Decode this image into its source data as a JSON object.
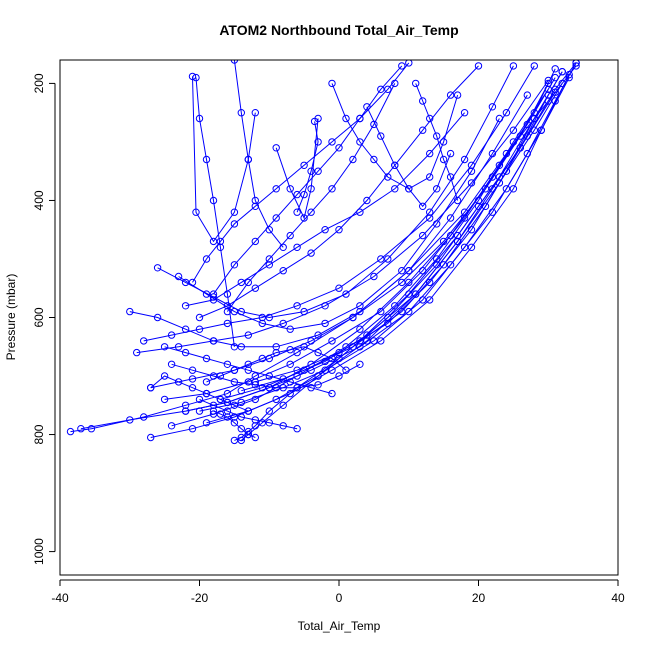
{
  "chart_data": {
    "type": "line",
    "title": "ATOM2 Northbound Total_Air_Temp",
    "xlabel": "Total_Air_Temp",
    "ylabel": "Pressure (mbar)",
    "xlim": [
      -40,
      40
    ],
    "ylim": [
      1040,
      160
    ],
    "y_reversed": true,
    "x_ticks": [
      -40,
      -20,
      0,
      20,
      40
    ],
    "y_ticks": [
      200,
      400,
      600,
      800,
      1000
    ],
    "grid": false,
    "series_color": "#0000ff",
    "series": [
      {
        "x": [
          -38.5,
          -35.5,
          -28,
          -22,
          -16,
          -12,
          -6,
          2,
          10,
          18,
          24,
          30,
          34
        ],
        "y": [
          795,
          790,
          770,
          750,
          730,
          700,
          660,
          600,
          520,
          420,
          320,
          230,
          170
        ]
      },
      {
        "x": [
          -37,
          -30,
          -22,
          -16,
          -10,
          -4,
          3,
          10,
          16,
          22,
          27,
          31
        ],
        "y": [
          790,
          775,
          760,
          745,
          720,
          680,
          620,
          540,
          460,
          360,
          270,
          190
        ]
      },
      {
        "x": [
          -27,
          -21,
          -15,
          -9,
          -3,
          4,
          11,
          17,
          23,
          28,
          32
        ],
        "y": [
          805,
          790,
          770,
          740,
          700,
          640,
          560,
          470,
          370,
          280,
          200
        ]
      },
      {
        "x": [
          -24,
          -18,
          -12,
          -6,
          1,
          8,
          14,
          20,
          25,
          30
        ],
        "y": [
          785,
          765,
          740,
          700,
          650,
          580,
          500,
          400,
          300,
          210
        ]
      },
      {
        "x": [
          -20,
          -14,
          -8,
          -2,
          5,
          12,
          18,
          24,
          29,
          33
        ],
        "y": [
          760,
          745,
          720,
          690,
          640,
          570,
          480,
          380,
          280,
          185
        ]
      },
      {
        "x": [
          -17,
          -11,
          -5,
          2,
          9,
          15,
          21,
          26,
          31
        ],
        "y": [
          740,
          720,
          690,
          650,
          590,
          510,
          410,
          310,
          215
        ]
      },
      {
        "x": [
          -14,
          -8,
          -2,
          4,
          11,
          17,
          22,
          27,
          31,
          34
        ],
        "y": [
          725,
          705,
          675,
          630,
          560,
          470,
          380,
          290,
          210,
          165
        ]
      },
      {
        "x": [
          -12,
          -6,
          0,
          7,
          13,
          19,
          24,
          28,
          32
        ],
        "y": [
          710,
          690,
          660,
          610,
          540,
          450,
          350,
          260,
          180
        ]
      },
      {
        "x": [
          -29,
          -23,
          -18,
          -13,
          -8,
          -2,
          5,
          12,
          19,
          25,
          30
        ],
        "y": [
          660,
          650,
          640,
          630,
          610,
          580,
          530,
          460,
          370,
          280,
          195
        ]
      },
      {
        "x": [
          -27,
          -21,
          -15,
          -10,
          -4,
          2,
          9,
          15,
          21,
          26,
          30
        ],
        "y": [
          720,
          705,
          690,
          670,
          640,
          600,
          540,
          470,
          380,
          290,
          200
        ]
      },
      {
        "x": [
          -25,
          -19,
          -13,
          -7,
          -1,
          6,
          12,
          18,
          23,
          28,
          31
        ],
        "y": [
          740,
          730,
          710,
          680,
          640,
          590,
          520,
          430,
          340,
          250,
          175
        ]
      },
      {
        "x": [
          -22,
          -16,
          -10,
          -4,
          3,
          10,
          16,
          22,
          27,
          31,
          34
        ],
        "y": [
          760,
          745,
          720,
          690,
          650,
          590,
          510,
          420,
          320,
          230,
          165
        ]
      },
      {
        "x": [
          -19,
          -13,
          -7,
          -1,
          6,
          13,
          19,
          25,
          29,
          33
        ],
        "y": [
          780,
          760,
          730,
          690,
          640,
          570,
          480,
          380,
          280,
          190
        ]
      },
      {
        "x": [
          -15,
          -14,
          -13,
          -12,
          -10,
          -6,
          0,
          7,
          14,
          20,
          26,
          30
        ],
        "y": [
          810,
          805,
          795,
          785,
          760,
          720,
          670,
          600,
          510,
          410,
          310,
          220
        ]
      },
      {
        "x": [
          -14,
          -13,
          -11,
          -8,
          -3,
          3,
          10,
          17,
          23,
          28,
          32
        ],
        "y": [
          810,
          800,
          780,
          750,
          700,
          640,
          560,
          460,
          360,
          260,
          180
        ]
      },
      {
        "x": [
          -30,
          -26,
          -22,
          -18,
          -14,
          -9,
          -3,
          3,
          10,
          16,
          22,
          27
        ],
        "y": [
          590,
          600,
          620,
          640,
          650,
          650,
          630,
          590,
          520,
          430,
          320,
          220
        ]
      },
      {
        "x": [
          -28,
          -24,
          -20,
          -16,
          -11,
          -6,
          0,
          6,
          13,
          19,
          24,
          28
        ],
        "y": [
          640,
          630,
          620,
          610,
          600,
          580,
          550,
          500,
          430,
          340,
          250,
          170
        ]
      },
      {
        "x": [
          -26,
          -22,
          -18,
          -14,
          -10,
          -5,
          1,
          7,
          13,
          18,
          22,
          25
        ],
        "y": [
          515,
          540,
          565,
          590,
          600,
          590,
          560,
          500,
          420,
          330,
          240,
          170
        ]
      },
      {
        "x": [
          -23,
          -19,
          -15,
          -11,
          -7,
          -2,
          3,
          9,
          14,
          19,
          23
        ],
        "y": [
          530,
          560,
          590,
          610,
          620,
          610,
          580,
          520,
          440,
          350,
          260
        ]
      },
      {
        "x": [
          -22,
          -18,
          -14,
          -10,
          -6,
          -2,
          3,
          8,
          13,
          18
        ],
        "y": [
          580,
          570,
          540,
          510,
          480,
          450,
          420,
          380,
          320,
          250
        ]
      },
      {
        "x": [
          -20,
          -16,
          -12,
          -8,
          -4,
          0,
          4,
          8,
          12,
          16,
          20
        ],
        "y": [
          600,
          580,
          550,
          520,
          490,
          450,
          400,
          340,
          280,
          220,
          170
        ]
      },
      {
        "x": [
          -21,
          -19,
          -17,
          -15,
          -12,
          -9,
          -5,
          -1,
          3,
          7,
          10
        ],
        "y": [
          540,
          500,
          470,
          440,
          410,
          380,
          340,
          300,
          260,
          210,
          165
        ]
      },
      {
        "x": [
          -18,
          -15,
          -12,
          -9,
          -6,
          -3,
          0,
          3,
          6,
          9
        ],
        "y": [
          560,
          510,
          470,
          430,
          390,
          350,
          310,
          260,
          210,
          170
        ]
      },
      {
        "x": [
          -16,
          -13,
          -10,
          -7,
          -4,
          -1,
          2,
          5,
          8
        ],
        "y": [
          590,
          540,
          500,
          460,
          420,
          380,
          330,
          270,
          200
        ]
      },
      {
        "x": [
          -27,
          -25,
          -23,
          -21,
          -19,
          -17,
          -15,
          -13
        ],
        "y": [
          720,
          700,
          710,
          720,
          730,
          740,
          750,
          760
        ]
      },
      {
        "x": [
          -20.5,
          -20,
          -19,
          -18,
          -17,
          -16,
          -15
        ],
        "y": [
          190,
          260,
          330,
          400,
          480,
          560,
          650
        ]
      },
      {
        "x": [
          -21,
          -20.5,
          -18,
          -15,
          -13,
          -12
        ],
        "y": [
          188,
          420,
          470,
          420,
          330,
          250
        ]
      },
      {
        "x": [
          -15,
          -14,
          -13,
          -12,
          -10,
          -8
        ],
        "y": [
          160,
          250,
          330,
          400,
          450,
          480
        ]
      },
      {
        "x": [
          -9,
          -7,
          -5,
          -4,
          -3
        ],
        "y": [
          310,
          380,
          430,
          380,
          260
        ]
      },
      {
        "x": [
          -3.5,
          -3,
          -4,
          -5,
          -6
        ],
        "y": [
          265,
          300,
          350,
          390,
          420
        ]
      },
      {
        "x": [
          -1,
          1,
          3,
          5,
          7,
          10,
          13,
          15,
          17
        ],
        "y": [
          200,
          260,
          300,
          330,
          360,
          380,
          360,
          300,
          220
        ]
      },
      {
        "x": [
          4,
          6,
          8,
          10,
          12,
          14,
          16
        ],
        "y": [
          240,
          290,
          340,
          380,
          410,
          380,
          320
        ]
      },
      {
        "x": [
          11,
          12,
          13,
          14,
          15,
          16,
          17
        ],
        "y": [
          200,
          230,
          260,
          290,
          330,
          360,
          400
        ]
      },
      {
        "x": [
          -25,
          -22,
          -19,
          -16,
          -13,
          -10,
          -7,
          -4,
          -1
        ],
        "y": [
          650,
          660,
          670,
          680,
          690,
          700,
          710,
          720,
          730
        ]
      },
      {
        "x": [
          -24,
          -21,
          -18,
          -15,
          -12,
          -9,
          -6,
          -3,
          0,
          3
        ],
        "y": [
          680,
          690,
          700,
          710,
          715,
          720,
          720,
          715,
          700,
          680
        ]
      },
      {
        "x": [
          -19,
          -17,
          -15,
          -13,
          -11,
          -9,
          -7,
          -5,
          -3,
          -1,
          1
        ],
        "y": [
          710,
          700,
          690,
          680,
          670,
          660,
          655,
          650,
          660,
          670,
          690
        ]
      },
      {
        "x": [
          -20,
          -18,
          -16,
          -14,
          -12,
          -10,
          -8,
          -6
        ],
        "y": [
          740,
          750,
          760,
          770,
          775,
          780,
          785,
          790
        ]
      },
      {
        "x": [
          -18,
          -17,
          -16,
          -15,
          -14,
          -13,
          -12
        ],
        "y": [
          760,
          765,
          770,
          780,
          790,
          800,
          805
        ]
      }
    ]
  }
}
